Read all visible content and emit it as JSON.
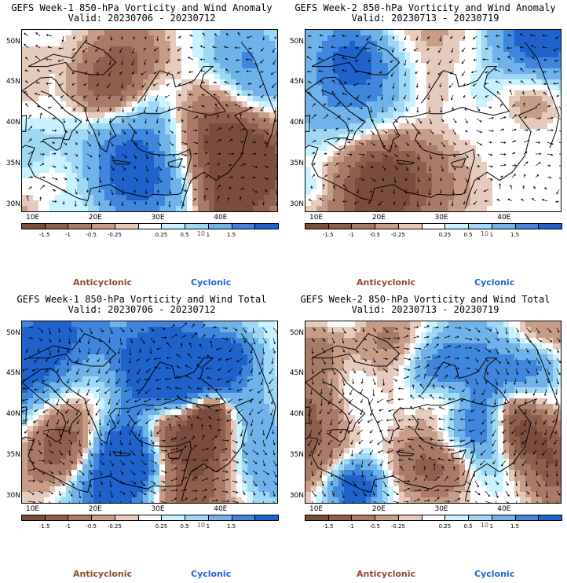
{
  "panels": [
    {
      "title": "GEFS Week-1 850-hPa Vorticity and Wind Anomaly",
      "valid": "Valid: 20230706 - 20230712",
      "kind": "anomaly",
      "seed": 11
    },
    {
      "title": "GEFS Week-2 850-hPa Vorticity and Wind Anomaly",
      "valid": "Valid: 20230713 - 20230719",
      "kind": "anomaly",
      "seed": 23
    },
    {
      "title": "GEFS Week-1 850-hPa Vorticity and Wind Total",
      "valid": "Valid: 20230706 - 20230712",
      "kind": "total",
      "seed": 37
    },
    {
      "title": "GEFS Week-2 850-hPa Vorticity and Wind Total",
      "valid": "Valid: 20230713 - 20230719",
      "kind": "total",
      "seed": 51
    }
  ],
  "lat_labels": [
    "50N",
    "45N",
    "40N",
    "35N",
    "30N"
  ],
  "lon_labels": [
    "10E",
    "20E",
    "30E",
    "40E"
  ],
  "colorbar": {
    "ticks": [
      "-1.5",
      "-1",
      "-0.5",
      "-0.25",
      "0.25",
      "0.5",
      "1",
      "1.5"
    ],
    "scale_marker": "10",
    "colors": [
      "#7a4c3b",
      "#8f5f4c",
      "#a97a66",
      "#c79d88",
      "#e6cbbd",
      "#ffffff",
      "#c8f2ff",
      "#9fd8f5",
      "#6fb3ea",
      "#3f86dc",
      "#1f62cc"
    ]
  },
  "legend": {
    "anticyclonic": "Anticyclonic",
    "cyclonic": "Cyclonic"
  }
}
